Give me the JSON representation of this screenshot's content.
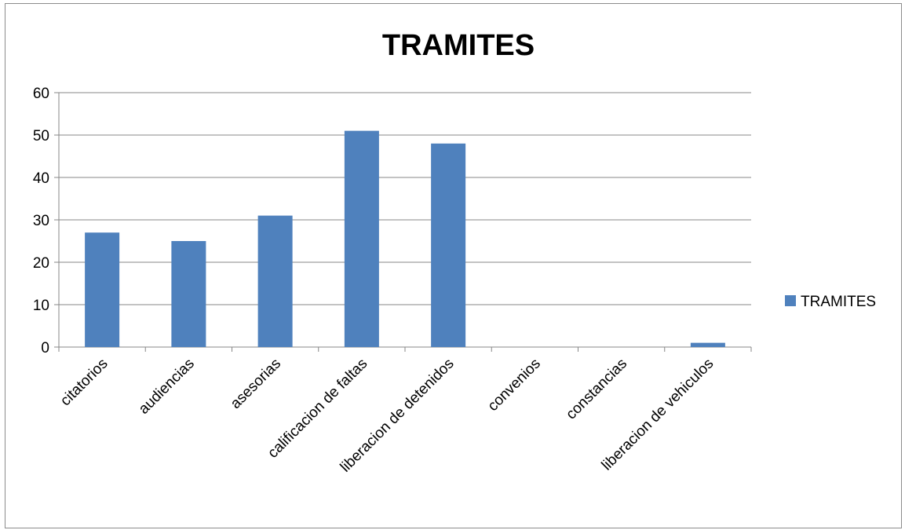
{
  "chart_data": {
    "type": "bar",
    "title": "TRAMITES",
    "xlabel": "",
    "ylabel": "",
    "categories": [
      "citatorios",
      "audiencias",
      "asesorias",
      "calificacion de faltas",
      "liberacion de detenidos",
      "convenios",
      "constancias",
      "liberacion de vehiculos"
    ],
    "series": [
      {
        "name": "TRAMITES",
        "values": [
          27,
          25,
          31,
          51,
          48,
          0,
          0,
          1
        ]
      }
    ],
    "ylim": [
      0,
      60
    ],
    "yticks": [
      0,
      10,
      20,
      30,
      40,
      50,
      60
    ],
    "grid": true,
    "legend_position": "right",
    "colors": {
      "bar": "#4F81BD",
      "grid": "#878787",
      "axis": "#878787"
    }
  }
}
